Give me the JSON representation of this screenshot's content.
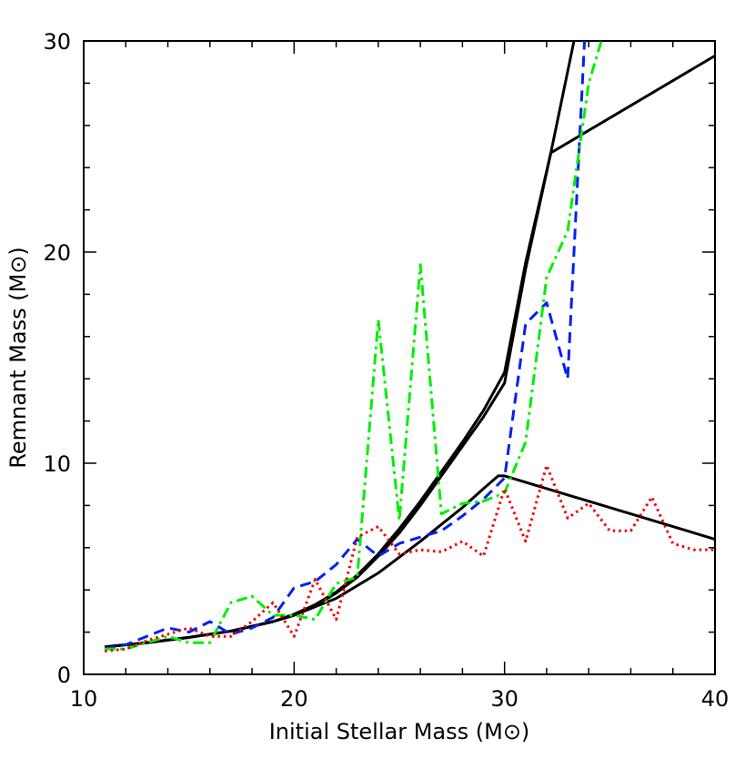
{
  "chart_data": {
    "type": "line",
    "xlabel": "Initial Stellar Mass (M⊙)",
    "ylabel": "Remnant Mass (M⊙)",
    "xlim": [
      10,
      40
    ],
    "ylim": [
      0,
      30
    ],
    "xticks": [
      10,
      20,
      30,
      40
    ],
    "yticks": [
      0,
      10,
      20,
      30
    ],
    "xminorticks": [
      12,
      14,
      16,
      18,
      22,
      24,
      26,
      28,
      32,
      34,
      36,
      38
    ],
    "yminorticks": [
      2,
      4,
      6,
      8,
      12,
      14,
      16,
      18,
      22,
      24,
      26,
      28
    ],
    "series": [
      {
        "color": "#000000",
        "dash": "solid",
        "x": [
          11,
          13,
          15,
          17,
          19,
          20,
          21,
          22,
          23,
          24,
          25,
          26,
          27,
          28,
          29,
          30,
          31,
          32.2,
          33.3
        ],
        "values": [
          1.3,
          1.5,
          1.75,
          2.05,
          2.5,
          2.85,
          3.3,
          3.9,
          4.7,
          5.7,
          6.9,
          8.2,
          9.6,
          11.0,
          12.5,
          14.3,
          19.5,
          24.7,
          30
        ]
      },
      {
        "color": "#000000",
        "dash": "solid",
        "x": [
          11,
          13,
          15,
          17,
          19,
          20,
          21,
          22,
          23,
          24,
          25,
          26,
          27,
          28,
          29,
          30,
          31,
          32.2,
          40
        ],
        "values": [
          1.3,
          1.5,
          1.75,
          2.05,
          2.5,
          2.8,
          3.25,
          3.85,
          4.6,
          5.6,
          6.7,
          8.0,
          9.4,
          10.8,
          12.2,
          13.8,
          19.2,
          24.7,
          29.3
        ]
      },
      {
        "color": "#000000",
        "dash": "solid",
        "x": [
          11,
          13,
          15,
          17,
          19,
          20,
          22,
          24,
          26,
          28,
          29,
          29.7,
          30,
          40
        ],
        "values": [
          1.3,
          1.5,
          1.75,
          2.05,
          2.5,
          2.8,
          3.6,
          4.8,
          6.3,
          7.9,
          8.8,
          9.4,
          9.4,
          6.4
        ]
      },
      {
        "color": "#0022ee",
        "dash": "dashed",
        "x": [
          11,
          12,
          13,
          14,
          15,
          16,
          17,
          18,
          19,
          20,
          21,
          22,
          23,
          24,
          25,
          26,
          27,
          28,
          29,
          30,
          31,
          32,
          33,
          33.5,
          33.8
        ],
        "values": [
          1.2,
          1.4,
          1.8,
          2.2,
          2.0,
          2.5,
          1.9,
          2.2,
          2.7,
          4.1,
          4.4,
          5.2,
          6.4,
          5.6,
          6.2,
          6.5,
          6.8,
          7.5,
          8.3,
          9.3,
          16.6,
          17.6,
          14.0,
          24,
          30
        ]
      },
      {
        "color": "#00ee00",
        "dash": "dashdot",
        "x": [
          11,
          12,
          13,
          14,
          15,
          16,
          17,
          18,
          19,
          20,
          21,
          22,
          23,
          24,
          25,
          26,
          27,
          28,
          29,
          30,
          31,
          32,
          33,
          34,
          34.6
        ],
        "values": [
          1.2,
          1.2,
          1.5,
          1.8,
          1.5,
          1.5,
          3.4,
          3.7,
          2.8,
          2.8,
          2.6,
          4.3,
          4.6,
          16.8,
          7.3,
          19.4,
          7.6,
          8.1,
          8.2,
          8.6,
          11.0,
          18.8,
          21.0,
          28,
          30
        ]
      },
      {
        "color": "#ee0000",
        "dash": "dotted",
        "x": [
          11,
          12,
          13,
          14,
          15,
          16,
          17,
          18,
          19,
          20,
          21,
          22,
          23,
          24,
          25,
          26,
          27,
          28,
          29,
          30,
          31,
          32,
          33,
          34,
          35,
          36,
          37,
          38,
          39,
          40
        ],
        "values": [
          1.1,
          1.2,
          1.6,
          1.9,
          2.2,
          1.8,
          1.8,
          2.5,
          3.4,
          1.8,
          4.5,
          2.6,
          6.5,
          7.0,
          5.7,
          5.9,
          5.8,
          6.3,
          5.6,
          8.8,
          6.3,
          9.9,
          7.4,
          8.1,
          6.8,
          6.8,
          8.4,
          6.2,
          5.9,
          5.9
        ]
      }
    ]
  }
}
